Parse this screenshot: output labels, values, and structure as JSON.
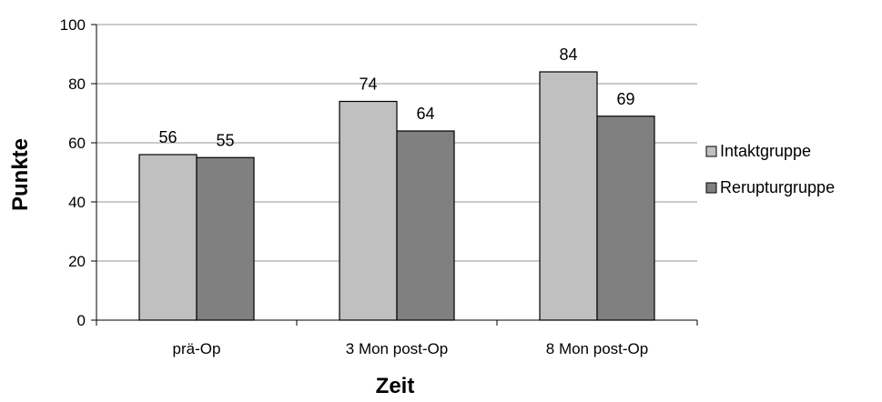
{
  "chart_data": {
    "type": "bar",
    "title": "",
    "xlabel": "Zeit",
    "ylabel": "Punkte",
    "categories": [
      "prä-Op",
      "3 Mon post-Op",
      "8 Mon post-Op"
    ],
    "series": [
      {
        "name": "Intaktgruppe",
        "values": [
          56,
          74,
          84
        ],
        "color": "#c0c0c0"
      },
      {
        "name": "Rerupturgruppe",
        "values": [
          55,
          64,
          69
        ],
        "color": "#808080"
      }
    ],
    "ylim": [
      0,
      100
    ],
    "yticks": [
      0,
      20,
      40,
      60,
      80,
      100
    ],
    "grid": true,
    "legend": "right"
  }
}
